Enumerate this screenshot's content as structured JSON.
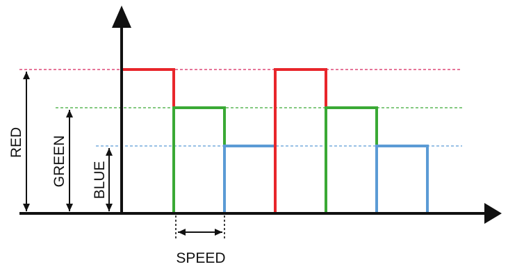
{
  "colors": {
    "red": "#e8262b",
    "green": "#3aa935",
    "blue": "#5b9bd5",
    "red_guide": "#d8235a",
    "axis": "#111111"
  },
  "labels": {
    "red": "RED",
    "green": "GREEN",
    "blue": "BLUE",
    "speed": "SPEED"
  },
  "pulse_sequence": [
    "red",
    "green",
    "blue",
    "red",
    "green",
    "blue"
  ],
  "levels": {
    "red": 3,
    "green": 2,
    "blue": 1
  }
}
